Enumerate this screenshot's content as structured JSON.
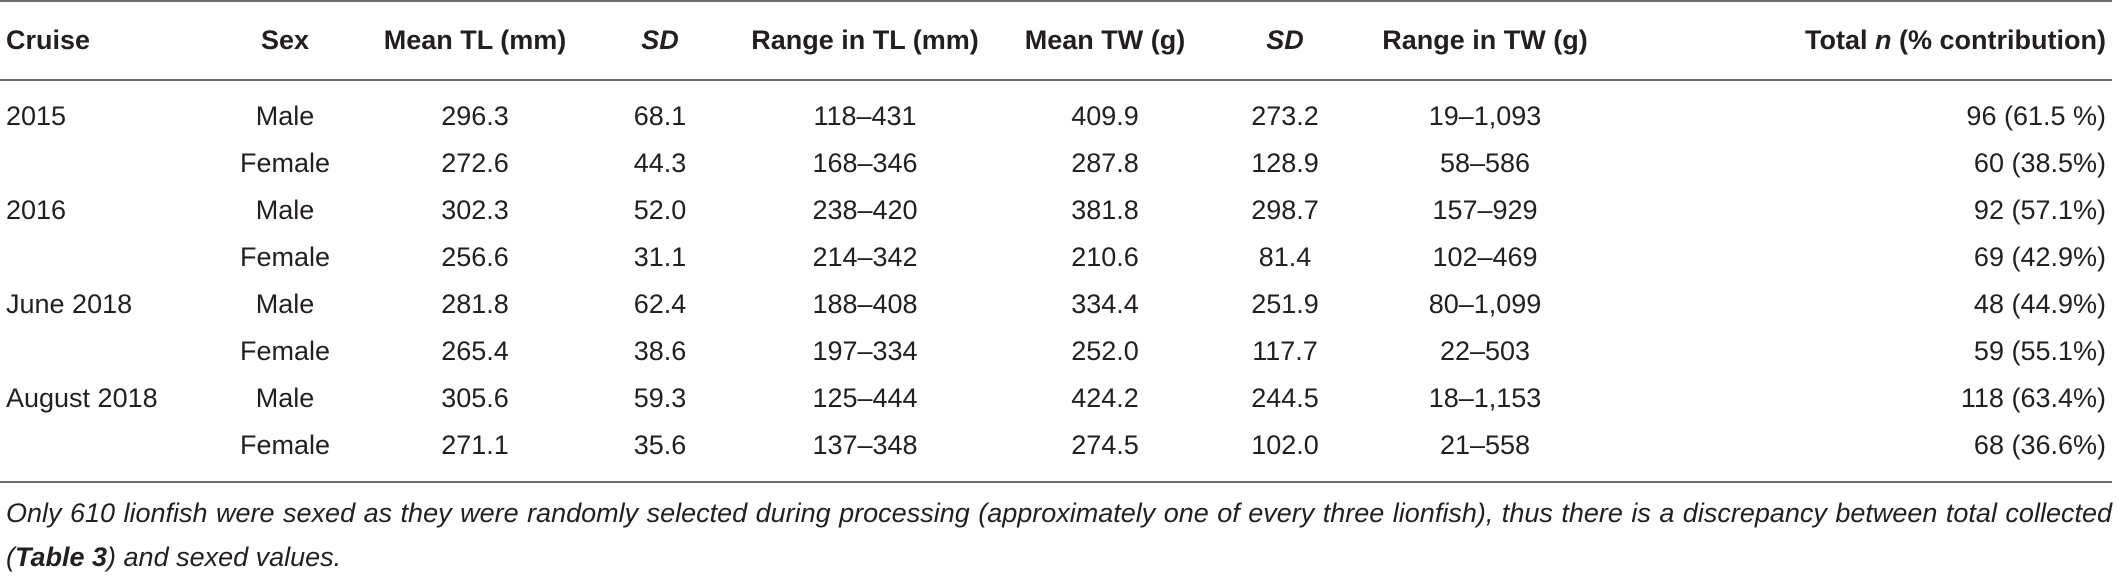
{
  "table": {
    "headers": {
      "cruise": "Cruise",
      "sex": "Sex",
      "mean_tl": "Mean TL (mm)",
      "sd_tl": "SD",
      "range_tl": "Range in TL (mm)",
      "mean_tw": "Mean TW (g)",
      "sd_tw": "SD",
      "range_tw": "Range in TW (g)",
      "total_pre": "Total ",
      "total_n": "n",
      "total_post": " (% contribution)"
    },
    "rows": [
      {
        "cruise": "2015",
        "sex": "Male",
        "mean_tl": "296.3",
        "sd_tl": "68.1",
        "range_tl": "118–431",
        "mean_tw": "409.9",
        "sd_tw": "273.2",
        "range_tw": "19–1,093",
        "total": "96 (61.5 %)"
      },
      {
        "cruise": "",
        "sex": "Female",
        "mean_tl": "272.6",
        "sd_tl": "44.3",
        "range_tl": "168–346",
        "mean_tw": "287.8",
        "sd_tw": "128.9",
        "range_tw": "58–586",
        "total": "60 (38.5%)"
      },
      {
        "cruise": "2016",
        "sex": "Male",
        "mean_tl": "302.3",
        "sd_tl": "52.0",
        "range_tl": "238–420",
        "mean_tw": "381.8",
        "sd_tw": "298.7",
        "range_tw": "157–929",
        "total": "92 (57.1%)"
      },
      {
        "cruise": "",
        "sex": "Female",
        "mean_tl": "256.6",
        "sd_tl": "31.1",
        "range_tl": "214–342",
        "mean_tw": "210.6",
        "sd_tw": "81.4",
        "range_tw": "102–469",
        "total": "69 (42.9%)"
      },
      {
        "cruise": "June 2018",
        "sex": "Male",
        "mean_tl": "281.8",
        "sd_tl": "62.4",
        "range_tl": "188–408",
        "mean_tw": "334.4",
        "sd_tw": "251.9",
        "range_tw": "80–1,099",
        "total": "48 (44.9%)"
      },
      {
        "cruise": "",
        "sex": "Female",
        "mean_tl": "265.4",
        "sd_tl": "38.6",
        "range_tl": "197–334",
        "mean_tw": "252.0",
        "sd_tw": "117.7",
        "range_tw": "22–503",
        "total": "59 (55.1%)"
      },
      {
        "cruise": "August 2018",
        "sex": "Male",
        "mean_tl": "305.6",
        "sd_tl": "59.3",
        "range_tl": "125–444",
        "mean_tw": "424.2",
        "sd_tw": "244.5",
        "range_tw": "18–1,153",
        "total": "118 (63.4%)"
      },
      {
        "cruise": "",
        "sex": "Female",
        "mean_tl": "271.1",
        "sd_tl": "35.6",
        "range_tl": "137–348",
        "mean_tw": "274.5",
        "sd_tw": "102.0",
        "range_tw": "21–558",
        "total": "68 (36.6%)"
      }
    ]
  },
  "footnote": {
    "before": "Only 610 lionfish were sexed as they were randomly selected during processing (approximately one of every three lionfish), thus there is a discrepancy between total collected (",
    "ref": "Table 3",
    "after": ") and sexed values."
  }
}
